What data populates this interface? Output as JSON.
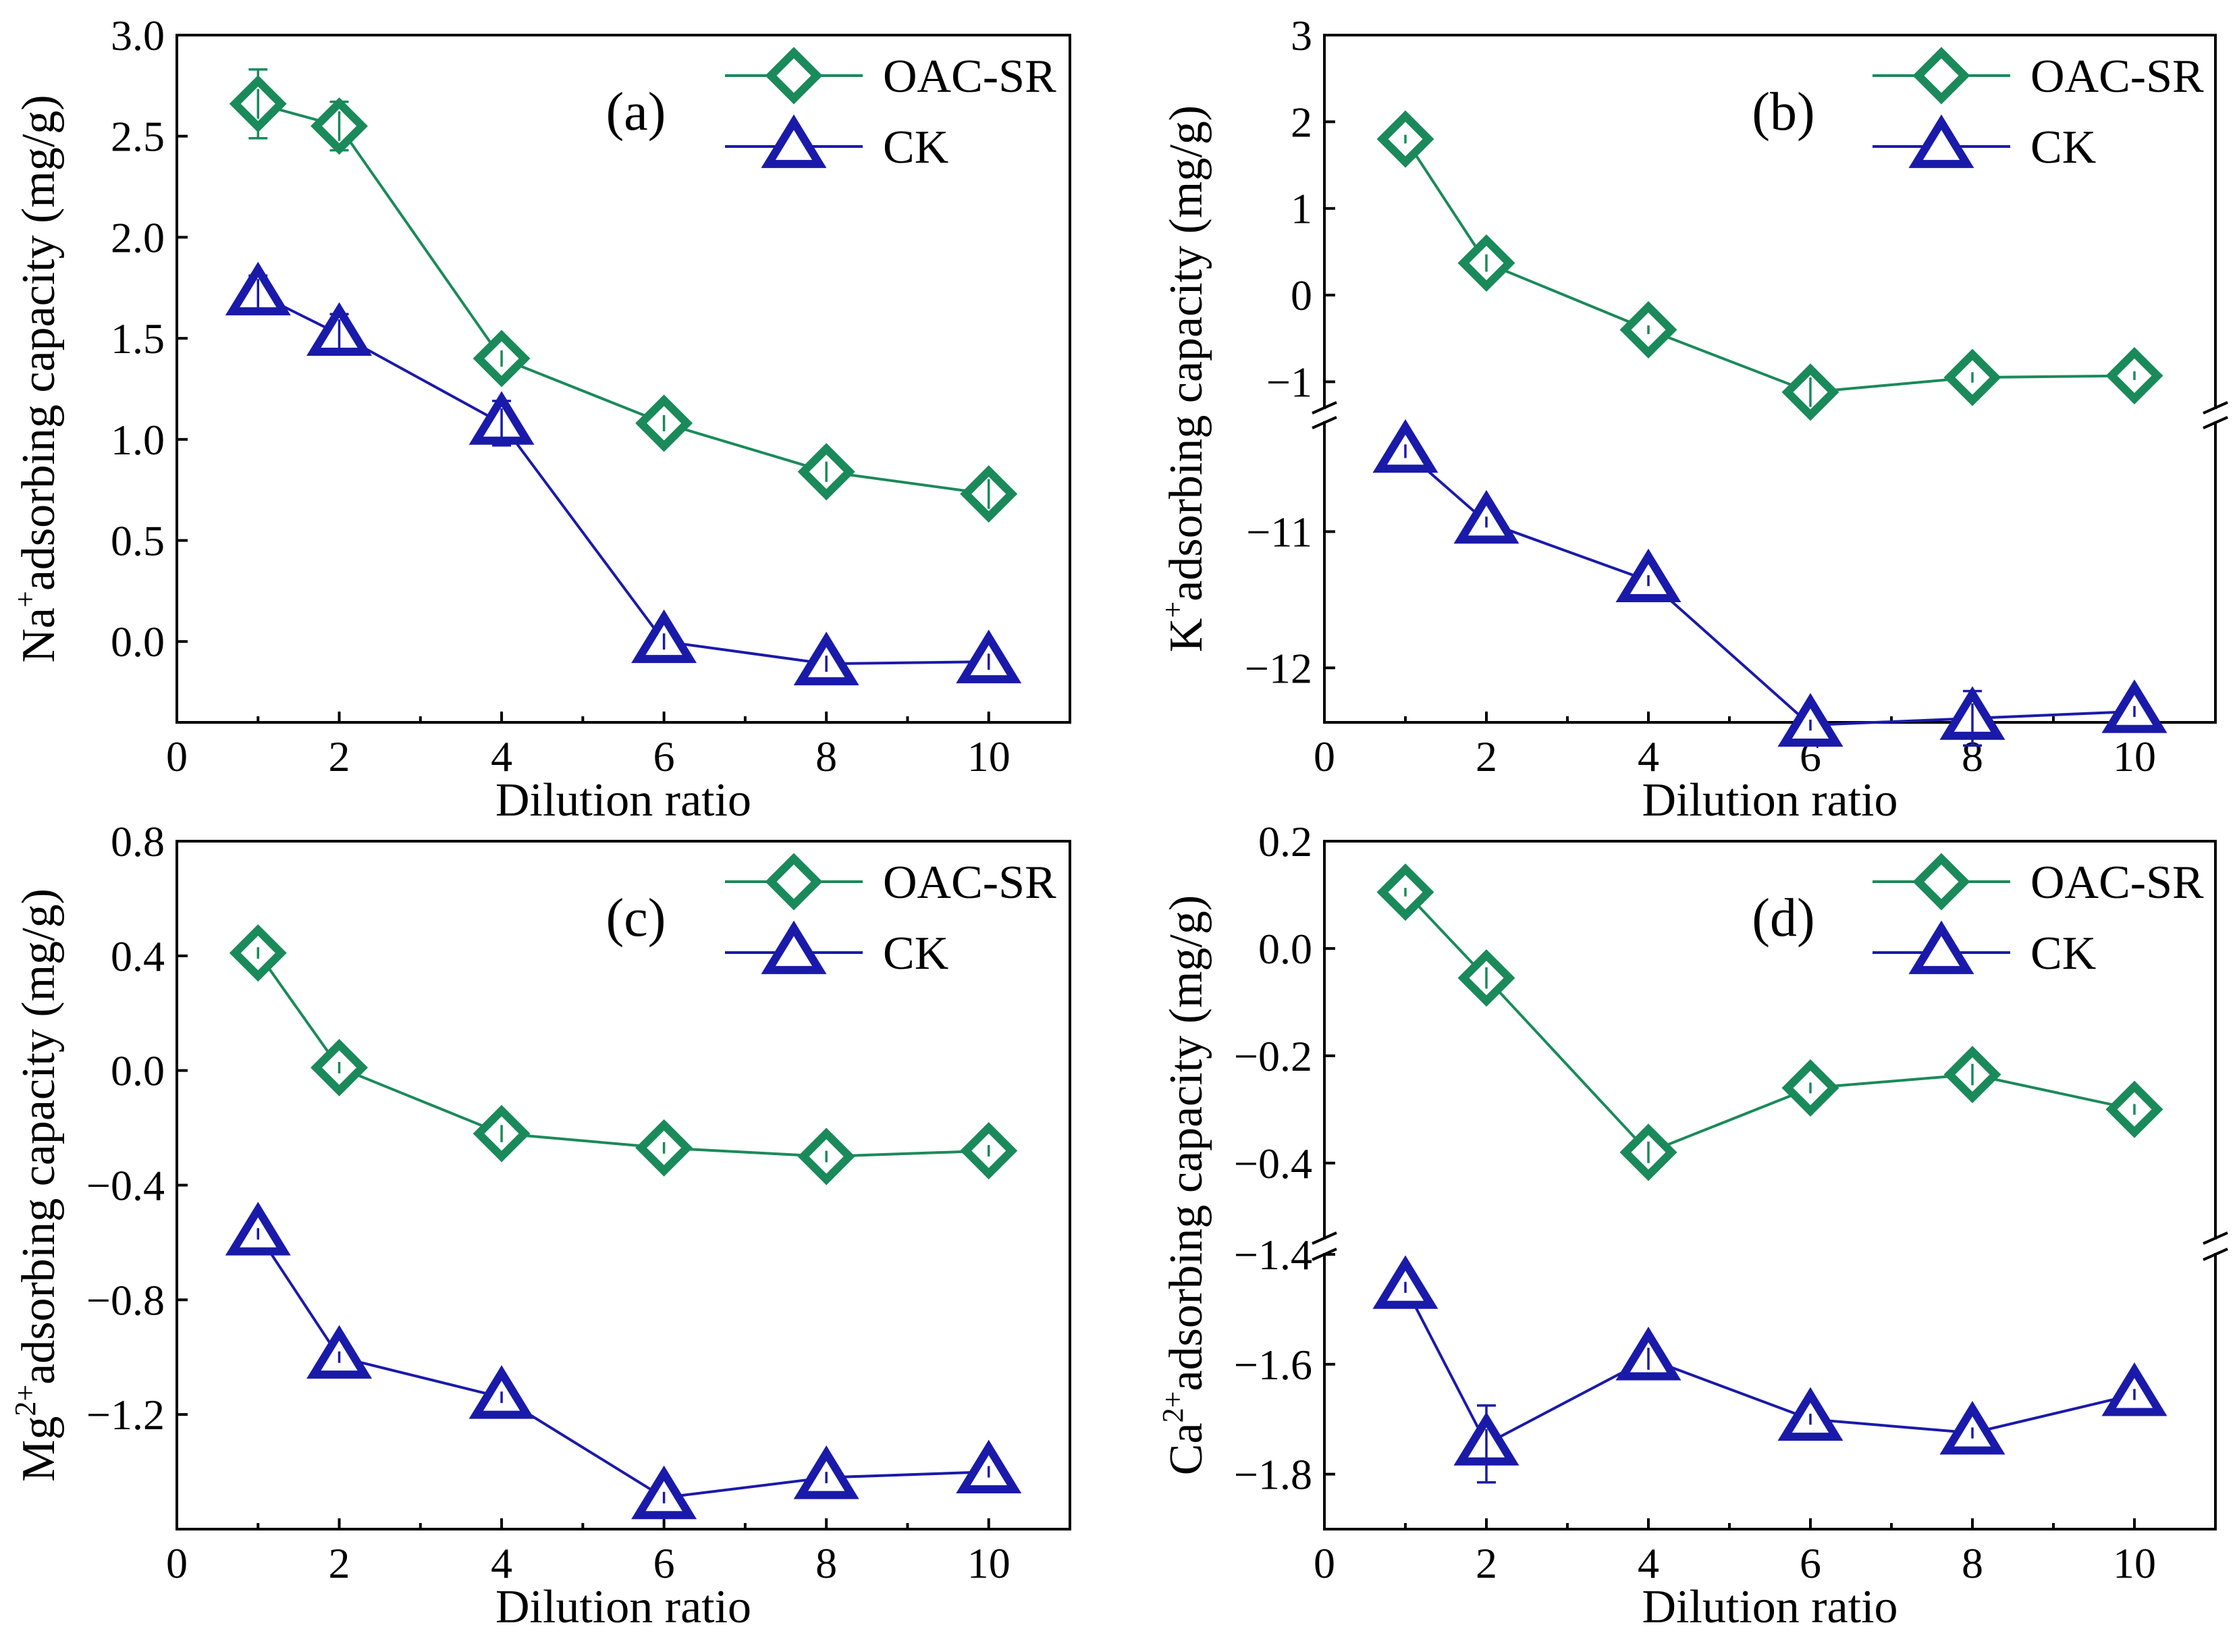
{
  "figure": {
    "series_style": {
      "OAC-SR": {
        "color": "#1a8a5a",
        "marker": "diamond"
      },
      "CK": {
        "color": "#1a1aaa",
        "marker": "triangle"
      }
    }
  },
  "chart_data": [
    {
      "id": "a",
      "type": "line",
      "panel_label": "(a)",
      "xlabel": "Dilution ratio",
      "ylabel_prefix": "Na",
      "ylabel_sup": "+",
      "ylabel_suffix": "adsorbing capacity (mg/g)",
      "xlim": [
        0,
        11
      ],
      "x_ticks": [
        0,
        2,
        4,
        6,
        8,
        10
      ],
      "x_tick_labels": [
        "0",
        "2",
        "4",
        "6",
        "8",
        "10"
      ],
      "ylim": [
        -0.4,
        3.0
      ],
      "y_ticks": [
        0.0,
        0.5,
        1.0,
        1.5,
        2.0,
        2.5,
        3.0
      ],
      "y_tick_labels": [
        "0.0",
        "0.5",
        "1.0",
        "1.5",
        "2.0",
        "2.5",
        "3.0"
      ],
      "legend": [
        "OAC-SR",
        "CK"
      ],
      "x": [
        1,
        2,
        4,
        6,
        8,
        10
      ],
      "series": [
        {
          "name": "OAC-SR",
          "values": [
            2.66,
            2.55,
            1.4,
            1.08,
            0.84,
            0.73
          ],
          "errors": [
            0.17,
            0.12,
            0.04,
            0.04,
            0.05,
            0.08
          ]
        },
        {
          "name": "CK",
          "values": [
            1.72,
            1.52,
            1.08,
            0.0,
            -0.11,
            -0.1
          ],
          "errors": [
            0.09,
            0.1,
            0.11,
            0.04,
            0.04,
            0.04
          ]
        }
      ]
    },
    {
      "id": "b",
      "type": "line",
      "panel_label": "(b)",
      "xlabel": "Dilution ratio",
      "ylabel_prefix": "K",
      "ylabel_sup": "+",
      "ylabel_suffix": "adsorbing capacity (mg/g)",
      "xlim": [
        0,
        11
      ],
      "x_ticks": [
        0,
        2,
        4,
        6,
        8,
        10
      ],
      "x_tick_labels": [
        "0",
        "2",
        "4",
        "6",
        "8",
        "10"
      ],
      "broken_y": true,
      "upper_ylim": [
        -1.3,
        3.0
      ],
      "upper_y_ticks": [
        -1,
        0,
        1,
        2,
        3
      ],
      "upper_y_tick_labels": [
        "−1",
        "0",
        "1",
        "2",
        "3"
      ],
      "lower_ylim": [
        -12.4,
        -10.2
      ],
      "lower_y_ticks": [
        -12,
        -11
      ],
      "lower_y_tick_labels": [
        "−12",
        "−11"
      ],
      "legend": [
        "OAC-SR",
        "CK"
      ],
      "x": [
        1,
        2,
        4,
        6,
        8,
        10
      ],
      "series": [
        {
          "name": "OAC-SR",
          "axis": "upper",
          "values": [
            1.8,
            0.37,
            -0.4,
            -1.12,
            -0.95,
            -0.93
          ],
          "errors": [
            0.05,
            0.1,
            0.05,
            0.17,
            0.06,
            0.05
          ]
        },
        {
          "name": "CK",
          "axis": "lower",
          "values": [
            -10.41,
            -10.93,
            -11.36,
            -12.42,
            -12.37,
            -12.32
          ],
          "errors": [
            0.05,
            0.04,
            0.04,
            0.04,
            0.2,
            0.04
          ]
        }
      ]
    },
    {
      "id": "c",
      "type": "line",
      "panel_label": "(c)",
      "xlabel": "Dilution ratio",
      "ylabel_prefix": "Mg",
      "ylabel_sup": "2+",
      "ylabel_suffix": "adsorbing capacity (mg/g)",
      "xlim": [
        0,
        11
      ],
      "x_ticks": [
        0,
        2,
        4,
        6,
        8,
        10
      ],
      "x_tick_labels": [
        "0",
        "2",
        "4",
        "6",
        "8",
        "10"
      ],
      "ylim": [
        -1.6,
        0.8
      ],
      "y_ticks": [
        -1.2,
        -0.8,
        -0.4,
        0.0,
        0.4,
        0.8
      ],
      "y_tick_labels": [
        "−1.2",
        "−0.8",
        "−0.4",
        "0.0",
        "0.4",
        "0.8"
      ],
      "legend": [
        "OAC-SR",
        "CK"
      ],
      "x": [
        1,
        2,
        4,
        6,
        8,
        10
      ],
      "series": [
        {
          "name": "OAC-SR",
          "values": [
            0.41,
            0.01,
            -0.22,
            -0.27,
            -0.3,
            -0.28
          ],
          "errors": [
            0.02,
            0.02,
            0.03,
            0.02,
            0.02,
            0.02
          ]
        },
        {
          "name": "CK",
          "values": [
            -0.57,
            -1.0,
            -1.14,
            -1.49,
            -1.42,
            -1.4
          ],
          "errors": [
            0.02,
            0.02,
            0.02,
            0.02,
            0.02,
            0.02
          ]
        }
      ]
    },
    {
      "id": "d",
      "type": "line",
      "panel_label": "(d)",
      "xlabel": "Dilution ratio",
      "ylabel_prefix": "Ca",
      "ylabel_sup": "2+",
      "ylabel_suffix": "adsorbing capacity (mg/g)",
      "xlim": [
        0,
        11
      ],
      "x_ticks": [
        0,
        2,
        4,
        6,
        8,
        10
      ],
      "x_tick_labels": [
        "0",
        "2",
        "4",
        "6",
        "8",
        "10"
      ],
      "broken_y": true,
      "upper_ylim": [
        -0.54,
        0.2
      ],
      "upper_y_ticks": [
        -0.4,
        -0.2,
        0.0,
        0.2
      ],
      "upper_y_tick_labels": [
        "−0.4",
        "−0.2",
        "0.0",
        "0.2"
      ],
      "lower_ylim": [
        -1.9,
        -1.4
      ],
      "lower_y_ticks": [
        -1.8,
        -1.6,
        -1.4
      ],
      "lower_y_tick_labels": [
        "−1.8",
        "−1.6",
        "−1.4"
      ],
      "legend": [
        "OAC-SR",
        "CK"
      ],
      "x": [
        1,
        2,
        4,
        6,
        8,
        10
      ],
      "series": [
        {
          "name": "OAC-SR",
          "axis": "upper",
          "values": [
            0.105,
            -0.055,
            -0.38,
            -0.26,
            -0.235,
            -0.3
          ],
          "errors": [
            0.008,
            0.02,
            0.02,
            0.01,
            0.02,
            0.01
          ]
        },
        {
          "name": "CK",
          "axis": "lower",
          "values": [
            -1.46,
            -1.745,
            -1.59,
            -1.7,
            -1.725,
            -1.655
          ],
          "errors": [
            0.01,
            0.07,
            0.02,
            0.01,
            0.01,
            0.01
          ]
        }
      ]
    }
  ]
}
